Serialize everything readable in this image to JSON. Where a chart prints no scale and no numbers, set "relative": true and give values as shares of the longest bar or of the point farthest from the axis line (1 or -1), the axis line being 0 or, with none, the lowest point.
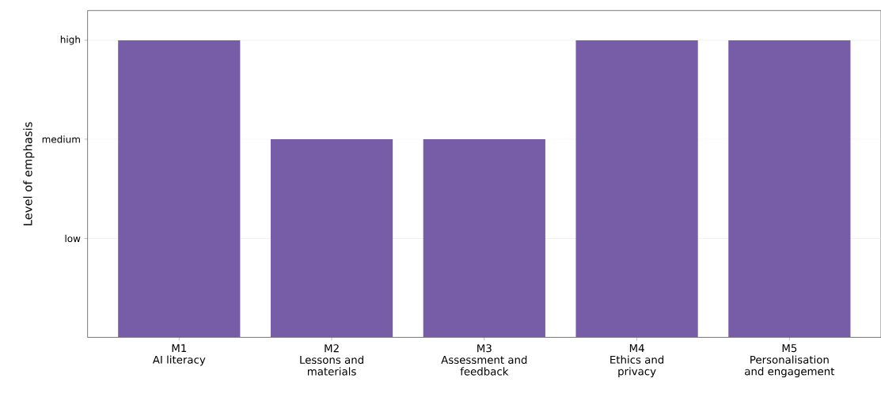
{
  "chart_data": {
    "type": "bar",
    "ylabel": "Level of emphasis",
    "relative": true,
    "categories": [
      "M1\nAI literacy",
      "M2\nLessons and\nmaterials",
      "M3\nAssessment and\nfeedback",
      "M4\nEthics and\nprivacy",
      "M5\nPersonalisation\nand engagement"
    ],
    "values": [
      1,
      0.667,
      0.667,
      1,
      1
    ],
    "color": "#775ca8",
    "ref_lines": [
      {
        "axis": "y",
        "value": 0.333,
        "label": "low",
        "color": "#e5e5e5"
      },
      {
        "axis": "y",
        "value": 0.667,
        "label": "medium",
        "color": "#e5e5e5"
      },
      {
        "axis": "y",
        "value": 1,
        "label": "high",
        "color": "#e5e5e5"
      }
    ]
  }
}
